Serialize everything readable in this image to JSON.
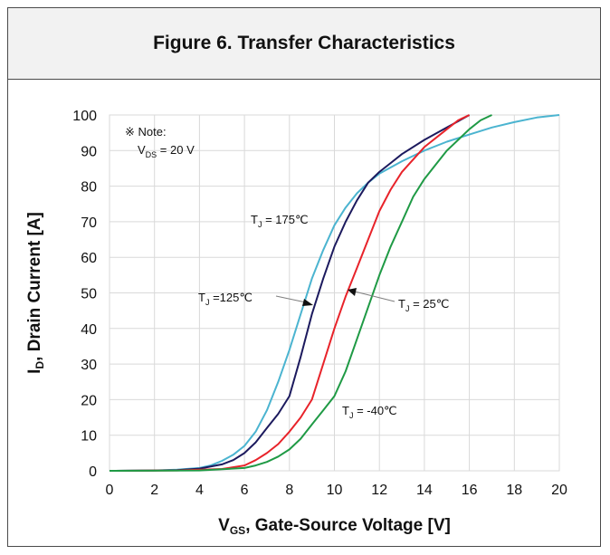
{
  "figure_title": "Figure 6. Transfer Characteristics",
  "colors": {
    "c175": "#4bb4d0",
    "c125": "#1c1a5e",
    "c25": "#e8232a",
    "cm40": "#1f9a45"
  },
  "chart_data": {
    "type": "line",
    "title": "Figure 6. Transfer Characteristics",
    "xlabel": {
      "main": "V",
      "sub": "GS",
      "rest": ", Gate-Source Voltage [V]"
    },
    "ylabel": {
      "main": "I",
      "sub": "D",
      "rest": ", Drain Current [A]"
    },
    "xlim": [
      0,
      20
    ],
    "ylim": [
      0,
      100
    ],
    "xticks": [
      "0",
      "2",
      "4",
      "6",
      "8",
      "10",
      "12",
      "14",
      "16",
      "18",
      "20"
    ],
    "yticks": [
      "0",
      "10",
      "20",
      "30",
      "40",
      "50",
      "60",
      "70",
      "80",
      "90",
      "100"
    ],
    "grid": true,
    "note": {
      "line1": "※ Note:",
      "vmain": "V",
      "vsub": "DS",
      "vrest": " = 20 V"
    },
    "series": [
      {
        "name": "T_J = 175℃",
        "color_key": "c175",
        "label_main": "T",
        "label_sub": "J",
        "label_rest": " = 175℃",
        "x": [
          0,
          2,
          3,
          4,
          4.5,
          5,
          5.5,
          6,
          6.5,
          7,
          7.5,
          8,
          8.5,
          9,
          9.5,
          10,
          10.5,
          11,
          11.5,
          12,
          13,
          14,
          15,
          16,
          17,
          18,
          19,
          20
        ],
        "y": [
          0,
          0.1,
          0.3,
          0.8,
          1.5,
          2.8,
          4.5,
          7,
          11,
          17,
          25,
          34,
          44,
          54,
          62,
          69,
          74,
          78,
          81,
          83.5,
          87,
          90,
          92.5,
          94.5,
          96.5,
          98,
          99.3,
          100
        ]
      },
      {
        "name": "T_J =125℃",
        "color_key": "c125",
        "label_main": "T",
        "label_sub": "J",
        "label_rest": " =125℃",
        "x": [
          0,
          2,
          3,
          4,
          5,
          5.5,
          6,
          6.5,
          7,
          7.5,
          8,
          8.5,
          9,
          9.5,
          10,
          10.5,
          11,
          11.5,
          12,
          12.5,
          13,
          14,
          15,
          16
        ],
        "y": [
          0,
          0.1,
          0.2,
          0.6,
          1.8,
          3,
          5,
          8,
          12,
          16,
          21,
          32,
          44,
          54,
          63,
          70,
          76,
          81,
          84,
          86.5,
          89,
          93,
          96.5,
          100
        ]
      },
      {
        "name": "T_J = 25℃",
        "color_key": "c25",
        "label_main": "T",
        "label_sub": "J",
        "label_rest": " = 25℃",
        "x": [
          0,
          3,
          5,
          6,
          6.5,
          7,
          7.5,
          8,
          8.5,
          9,
          9.5,
          10,
          10.5,
          11,
          11.5,
          12,
          12.5,
          13,
          14,
          15,
          15.5,
          16
        ],
        "y": [
          0,
          0.1,
          0.5,
          1.5,
          3,
          5,
          7.5,
          11,
          15,
          20,
          30,
          40,
          49,
          57,
          65,
          73,
          79,
          84,
          91,
          96,
          98.5,
          100
        ]
      },
      {
        "name": "T_J = -40℃",
        "color_key": "cm40",
        "label_main": "T",
        "label_sub": "J",
        "label_rest": " = -40℃",
        "x": [
          0,
          4,
          6,
          6.5,
          7,
          7.5,
          8,
          8.5,
          9,
          9.5,
          10,
          10.5,
          11,
          11.5,
          12,
          12.5,
          13,
          13.5,
          14,
          14.5,
          15,
          15.5,
          16,
          16.5,
          17
        ],
        "y": [
          0,
          0.1,
          0.8,
          1.5,
          2.5,
          4,
          6,
          9,
          13,
          17,
          21,
          28,
          37,
          46,
          55,
          63,
          70,
          77,
          82,
          86,
          90,
          93,
          96,
          98.5,
          100
        ]
      }
    ]
  }
}
